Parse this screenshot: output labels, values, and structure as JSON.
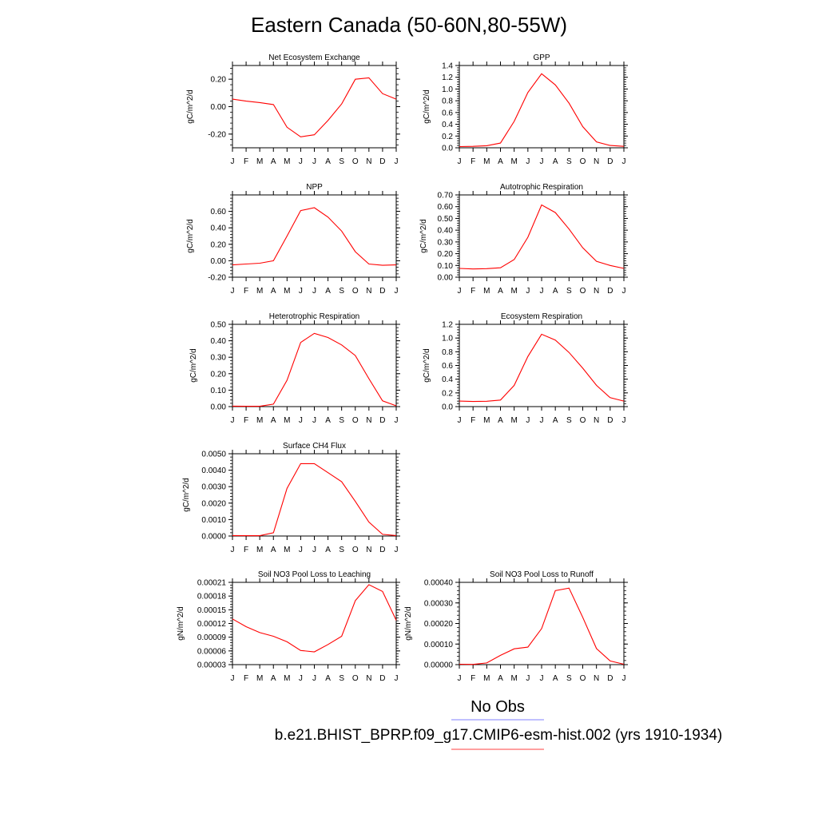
{
  "figure": {
    "title": "Eastern Canada (50-60N,80-55W)"
  },
  "legend": {
    "entries": [
      {
        "label": "No Obs",
        "color": "#8080ff"
      },
      {
        "label": "b.e21.BHIST_BPRP.f09_g17.CMIP6-esm-hist.002 (yrs 1910-1934)",
        "color": "#ff4040"
      }
    ]
  },
  "chart_data": [
    {
      "type": "line",
      "title": "Net Ecosystem Exchange",
      "ylabel": "gC/m^2/d",
      "xlabel": "",
      "categories": [
        "J",
        "F",
        "M",
        "A",
        "M",
        "J",
        "J",
        "A",
        "S",
        "O",
        "N",
        "D",
        "J"
      ],
      "ylim": [
        -0.3,
        0.3
      ],
      "yticks": [
        -0.2,
        0.0,
        0.2
      ],
      "yticklabels": [
        "-0.20",
        "0.00",
        "0.20"
      ],
      "grid": false,
      "series": [
        {
          "color": "#ff0000",
          "values": [
            0.055,
            0.04,
            0.03,
            0.015,
            -0.15,
            -0.22,
            -0.205,
            -0.1,
            0.02,
            0.2,
            0.21,
            0.095,
            0.055
          ]
        }
      ]
    },
    {
      "type": "line",
      "title": "GPP",
      "ylabel": "gC/m^2/d",
      "xlabel": "",
      "categories": [
        "J",
        "F",
        "M",
        "A",
        "M",
        "J",
        "J",
        "A",
        "S",
        "O",
        "N",
        "D",
        "J"
      ],
      "ylim": [
        0.0,
        1.4
      ],
      "yticks": [
        0.0,
        0.2,
        0.4,
        0.6,
        0.8,
        1.0,
        1.2,
        1.4
      ],
      "yticklabels": [
        "0.0",
        "0.2",
        "0.4",
        "0.6",
        "0.8",
        "1.0",
        "1.2",
        "1.4"
      ],
      "grid": false,
      "series": [
        {
          "color": "#ff0000",
          "values": [
            0.02,
            0.025,
            0.035,
            0.08,
            0.45,
            0.94,
            1.26,
            1.07,
            0.76,
            0.36,
            0.1,
            0.04,
            0.025
          ]
        }
      ]
    },
    {
      "type": "line",
      "title": "NPP",
      "ylabel": "gC/m^2/d",
      "xlabel": "",
      "categories": [
        "J",
        "F",
        "M",
        "A",
        "M",
        "J",
        "J",
        "A",
        "S",
        "O",
        "N",
        "D",
        "J"
      ],
      "ylim": [
        -0.2,
        0.8
      ],
      "yticks": [
        -0.2,
        0.0,
        0.2,
        0.4,
        0.6
      ],
      "yticklabels": [
        "-0.20",
        "0.00",
        "0.20",
        "0.40",
        "0.60"
      ],
      "grid": false,
      "series": [
        {
          "color": "#ff0000",
          "values": [
            -0.05,
            -0.04,
            -0.03,
            0.0,
            0.3,
            0.61,
            0.645,
            0.53,
            0.36,
            0.11,
            -0.04,
            -0.055,
            -0.05
          ]
        }
      ]
    },
    {
      "type": "line",
      "title": "Autotrophic Respiration",
      "ylabel": "gC/m^2/d",
      "xlabel": "",
      "categories": [
        "J",
        "F",
        "M",
        "A",
        "M",
        "J",
        "J",
        "A",
        "S",
        "O",
        "N",
        "D",
        "J"
      ],
      "ylim": [
        0.0,
        0.7
      ],
      "yticks": [
        0.0,
        0.1,
        0.2,
        0.3,
        0.4,
        0.5,
        0.6,
        0.7
      ],
      "yticklabels": [
        "0.00",
        "0.10",
        "0.20",
        "0.30",
        "0.40",
        "0.50",
        "0.60",
        "0.70"
      ],
      "grid": false,
      "series": [
        {
          "color": "#ff0000",
          "values": [
            0.075,
            0.07,
            0.073,
            0.08,
            0.15,
            0.34,
            0.615,
            0.55,
            0.41,
            0.25,
            0.135,
            0.1,
            0.075
          ]
        }
      ]
    },
    {
      "type": "line",
      "title": "Heterotrophic Respiration",
      "ylabel": "gC/m^2/d",
      "xlabel": "",
      "categories": [
        "J",
        "F",
        "M",
        "A",
        "M",
        "J",
        "J",
        "A",
        "S",
        "O",
        "N",
        "D",
        "J"
      ],
      "ylim": [
        0.0,
        0.5
      ],
      "yticks": [
        0.0,
        0.1,
        0.2,
        0.3,
        0.4,
        0.5
      ],
      "yticklabels": [
        "0.00",
        "0.10",
        "0.20",
        "0.30",
        "0.40",
        "0.50"
      ],
      "grid": false,
      "series": [
        {
          "color": "#ff0000",
          "values": [
            0.003,
            0.002,
            0.002,
            0.015,
            0.16,
            0.39,
            0.445,
            0.42,
            0.375,
            0.31,
            0.17,
            0.035,
            0.005
          ]
        }
      ]
    },
    {
      "type": "line",
      "title": "Ecosystem Respiration",
      "ylabel": "gC/m^2/d",
      "xlabel": "",
      "categories": [
        "J",
        "F",
        "M",
        "A",
        "M",
        "J",
        "J",
        "A",
        "S",
        "O",
        "N",
        "D",
        "J"
      ],
      "ylim": [
        0.0,
        1.2
      ],
      "yticks": [
        0.0,
        0.2,
        0.4,
        0.6,
        0.8,
        1.0,
        1.2
      ],
      "yticklabels": [
        "0.0",
        "0.2",
        "0.4",
        "0.6",
        "0.8",
        "1.0",
        "1.2"
      ],
      "grid": false,
      "series": [
        {
          "color": "#ff0000",
          "values": [
            0.08,
            0.075,
            0.078,
            0.095,
            0.31,
            0.73,
            1.055,
            0.97,
            0.79,
            0.56,
            0.31,
            0.13,
            0.08
          ]
        }
      ]
    },
    {
      "type": "line",
      "title": "Surface CH4 Flux",
      "ylabel": "gC/m^2/d",
      "xlabel": "",
      "categories": [
        "J",
        "F",
        "M",
        "A",
        "M",
        "J",
        "J",
        "A",
        "S",
        "O",
        "N",
        "D",
        "J"
      ],
      "ylim": [
        0.0,
        0.005
      ],
      "yticks": [
        0.0,
        0.001,
        0.002,
        0.003,
        0.004,
        0.005
      ],
      "yticklabels": [
        "0.0000",
        "0.0010",
        "0.0020",
        "0.0030",
        "0.0040",
        "0.0050"
      ],
      "grid": false,
      "series": [
        {
          "color": "#ff0000",
          "values": [
            3e-05,
            2e-05,
            2e-05,
            0.0002,
            0.0029,
            0.0044,
            0.0044,
            0.00385,
            0.0033,
            0.0021,
            0.00085,
            0.0001,
            3e-05
          ]
        }
      ]
    },
    {
      "type": "line",
      "title": "Soil NO3 Pool Loss to Leaching",
      "ylabel": "gN/m^2/d",
      "xlabel": "",
      "categories": [
        "J",
        "F",
        "M",
        "A",
        "M",
        "J",
        "J",
        "A",
        "S",
        "O",
        "N",
        "D",
        "J"
      ],
      "ylim": [
        3e-05,
        0.00021
      ],
      "yticks": [
        3e-05,
        6e-05,
        9e-05,
        0.00012,
        0.00015,
        0.00018,
        0.00021
      ],
      "yticklabels": [
        "0.00003",
        "0.00006",
        "0.00009",
        "0.00012",
        "0.00015",
        "0.00018",
        "0.00021"
      ],
      "grid": false,
      "series": [
        {
          "color": "#ff0000",
          "values": [
            0.00013,
            0.000113,
            0.0001,
            9.2e-05,
            8e-05,
            6.1e-05,
            5.8e-05,
            7.4e-05,
            9.2e-05,
            0.00017,
            0.000205,
            0.00019,
            0.000127
          ]
        }
      ]
    },
    {
      "type": "line",
      "title": "Soil NO3 Pool Loss to Runoff",
      "ylabel": "gN/m^2/d",
      "xlabel": "",
      "categories": [
        "J",
        "F",
        "M",
        "A",
        "M",
        "J",
        "J",
        "A",
        "S",
        "O",
        "N",
        "D",
        "J"
      ],
      "ylim": [
        0.0,
        0.0004
      ],
      "yticks": [
        0.0,
        0.0001,
        0.0002,
        0.0003,
        0.0004
      ],
      "yticklabels": [
        "0.00000",
        "0.00010",
        "0.00020",
        "0.00030",
        "0.00040"
      ],
      "grid": false,
      "series": [
        {
          "color": "#ff0000",
          "values": [
            2e-06,
            1e-06,
            8e-06,
            4.5e-05,
            7.7e-05,
            8.5e-05,
            0.000175,
            0.00036,
            0.000372,
            0.00023,
            7.8e-05,
            1.8e-05,
            2e-06
          ]
        }
      ]
    }
  ]
}
